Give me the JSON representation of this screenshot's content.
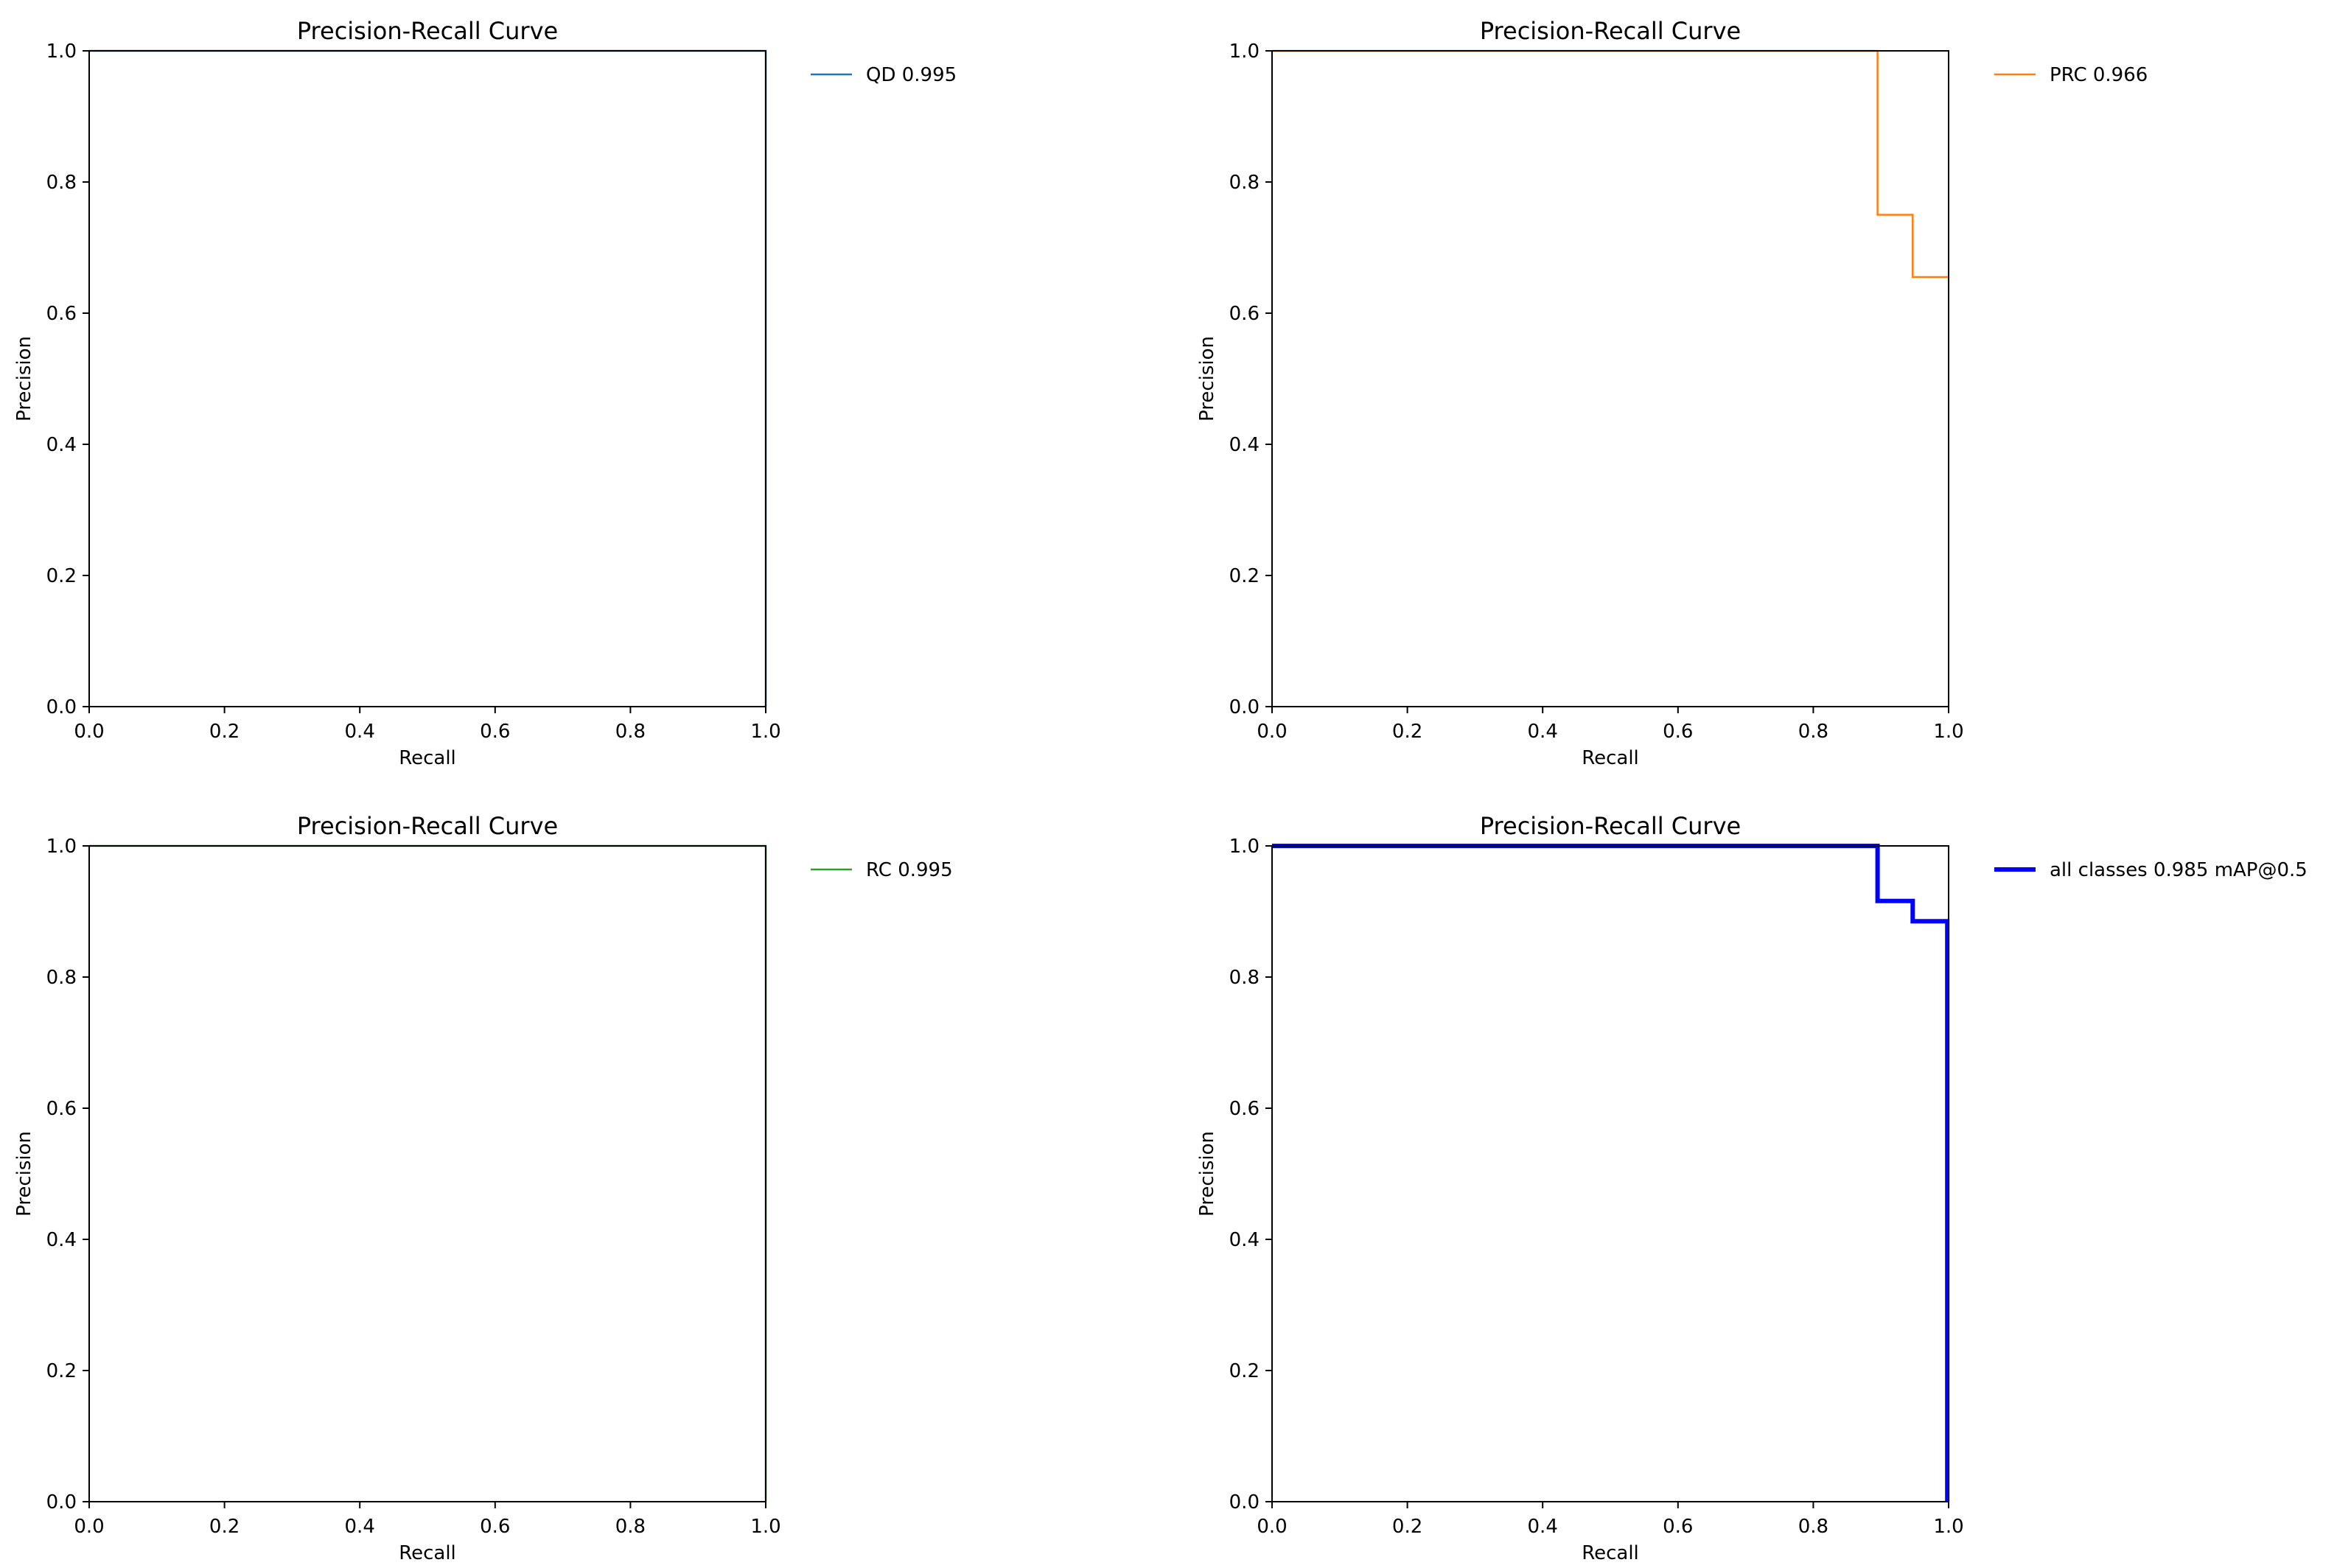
{
  "chart_data": [
    {
      "type": "line",
      "title": "Precision-Recall Curve",
      "xlabel": "Recall",
      "ylabel": "Precision",
      "xlim": [
        0,
        1
      ],
      "ylim": [
        0,
        1
      ],
      "xticks": [
        "0.0",
        "0.2",
        "0.4",
        "0.6",
        "0.8",
        "1.0"
      ],
      "yticks": [
        "0.0",
        "0.2",
        "0.4",
        "0.6",
        "0.8",
        "1.0"
      ],
      "grid": false,
      "legend_position": "outside-right",
      "series": [
        {
          "name": "QD 0.995",
          "color": "#1f77b4",
          "x": [
            0.0,
            1.0,
            1.0
          ],
          "y": [
            1.0,
            1.0,
            0.0
          ]
        }
      ]
    },
    {
      "type": "line",
      "title": "Precision-Recall Curve",
      "xlabel": "Recall",
      "ylabel": "Precision",
      "xlim": [
        0,
        1
      ],
      "ylim": [
        0,
        1
      ],
      "xticks": [
        "0.0",
        "0.2",
        "0.4",
        "0.6",
        "0.8",
        "1.0"
      ],
      "yticks": [
        "0.0",
        "0.2",
        "0.4",
        "0.6",
        "0.8",
        "1.0"
      ],
      "grid": false,
      "legend_position": "outside-right",
      "series": [
        {
          "name": "PRC 0.966",
          "color": "#ff7f0e",
          "x": [
            0.0,
            0.895,
            0.895,
            0.947,
            0.947,
            1.0
          ],
          "y": [
            1.0,
            1.0,
            0.75,
            0.75,
            0.655,
            0.655
          ]
        }
      ]
    },
    {
      "type": "line",
      "title": "Precision-Recall Curve",
      "xlabel": "Recall",
      "ylabel": "Precision",
      "xlim": [
        0,
        1
      ],
      "ylim": [
        0,
        1
      ],
      "xticks": [
        "0.0",
        "0.2",
        "0.4",
        "0.6",
        "0.8",
        "1.0"
      ],
      "yticks": [
        "0.0",
        "0.2",
        "0.4",
        "0.6",
        "0.8",
        "1.0"
      ],
      "grid": false,
      "legend_position": "outside-right",
      "series": [
        {
          "name": "RC 0.995",
          "color": "#2ca02c",
          "x": [
            0.0,
            1.0,
            1.0
          ],
          "y": [
            1.0,
            1.0,
            0.0
          ]
        }
      ]
    },
    {
      "type": "line",
      "title": "Precision-Recall Curve",
      "xlabel": "Recall",
      "ylabel": "Precision",
      "xlim": [
        0,
        1
      ],
      "ylim": [
        0,
        1
      ],
      "xticks": [
        "0.0",
        "0.2",
        "0.4",
        "0.6",
        "0.8",
        "1.0"
      ],
      "yticks": [
        "0.0",
        "0.2",
        "0.4",
        "0.6",
        "0.8",
        "1.0"
      ],
      "grid": false,
      "legend_position": "outside-right",
      "series": [
        {
          "name": "all classes 0.985 mAP@0.5",
          "color": "#0000ff",
          "emphasis": "bold",
          "x": [
            0.0,
            0.895,
            0.895,
            0.947,
            0.947,
            0.998,
            0.998
          ],
          "y": [
            1.0,
            1.0,
            0.916,
            0.916,
            0.885,
            0.885,
            0.0
          ]
        }
      ]
    }
  ]
}
